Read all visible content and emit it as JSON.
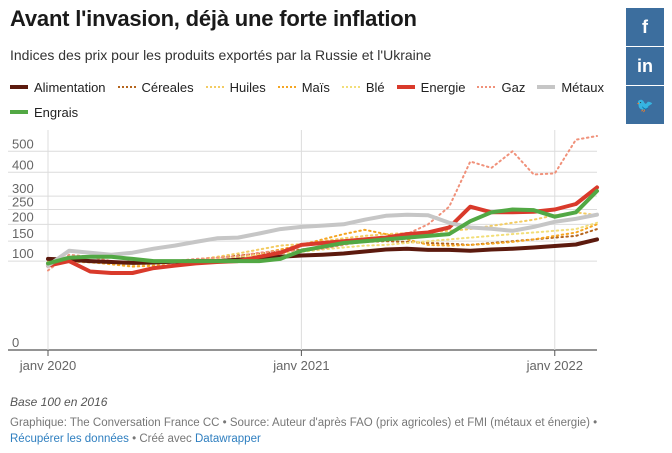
{
  "title": "Avant l'invasion, déjà une forte inflation",
  "subtitle": "Indices des prix pour les produits exportés par la Russie et l'Ukraine",
  "social": [
    {
      "name": "facebook-icon",
      "glyph": "f"
    },
    {
      "name": "linkedin-icon",
      "glyph": "in"
    },
    {
      "name": "twitter-icon",
      "glyph": "🐦"
    }
  ],
  "colors": {
    "Alimentation": "#5c1a0e",
    "Céreales": "#b5651d",
    "Huiles": "#f3cc63",
    "Maïs": "#f5a623",
    "Blé": "#f2de79",
    "Energie": "#d93a2b",
    "Gaz": "#f0917a",
    "Métaux": "#c6c6c6",
    "Engrais": "#52a844"
  },
  "chart_data": {
    "type": "line",
    "scale": "sqrt",
    "ylim": [
      0,
      580
    ],
    "yticks": [
      0,
      100,
      150,
      200,
      250,
      300,
      400,
      500
    ],
    "xticks": [
      {
        "label": "janv 2020",
        "t": 0
      },
      {
        "label": "janv 2021",
        "t": 12
      },
      {
        "label": "janv 2022",
        "t": 24
      }
    ],
    "xlim": [
      0,
      26
    ],
    "grid": true,
    "legend_position": "top",
    "series": [
      {
        "name": "Alimentation",
        "style": "solid",
        "width": 4,
        "values": [
          105,
          103,
          100,
          98,
          96,
          97,
          99,
          100,
          100,
          103,
          106,
          110,
          113,
          115,
          118,
          123,
          128,
          130,
          127,
          127,
          125,
          128,
          130,
          133,
          137,
          141,
          155
        ]
      },
      {
        "name": "Céreales",
        "style": "dotted",
        "width": 2,
        "values": [
          104,
          103,
          100,
          98,
          97,
          98,
          99,
          103,
          108,
          113,
          118,
          124,
          128,
          135,
          142,
          148,
          150,
          148,
          145,
          143,
          140,
          145,
          150,
          155,
          160,
          165,
          185
        ]
      },
      {
        "name": "Huiles",
        "style": "dotted",
        "width": 2,
        "values": [
          100,
          99,
          97,
          94,
          92,
          94,
          97,
          103,
          110,
          118,
          128,
          138,
          142,
          150,
          158,
          165,
          170,
          173,
          176,
          180,
          185,
          195,
          205,
          215,
          230,
          240,
          230
        ]
      },
      {
        "name": "Maïs",
        "style": "dotted",
        "width": 2,
        "values": [
          101,
          100,
          98,
          93,
          88,
          90,
          92,
          96,
          100,
          108,
          118,
          128,
          140,
          155,
          170,
          183,
          170,
          155,
          140,
          138,
          140,
          143,
          148,
          155,
          165,
          175,
          200
        ]
      },
      {
        "name": "Blé",
        "style": "dotted",
        "width": 2,
        "values": [
          102,
          101,
          100,
          99,
          98,
          99,
          100,
          103,
          107,
          110,
          115,
          118,
          122,
          128,
          133,
          138,
          140,
          145,
          150,
          155,
          160,
          165,
          170,
          175,
          180,
          185,
          205
        ]
      },
      {
        "name": "Energie",
        "style": "solid",
        "width": 4,
        "values": [
          90,
          100,
          78,
          75,
          75,
          85,
          90,
          95,
          98,
          100,
          110,
          120,
          140,
          145,
          150,
          155,
          160,
          170,
          175,
          190,
          260,
          240,
          240,
          242,
          250,
          270,
          335
        ]
      },
      {
        "name": "Gaz",
        "style": "dotted",
        "width": 2,
        "values": [
          80,
          115,
          110,
          100,
          95,
          95,
          100,
          105,
          108,
          112,
          120,
          125,
          125,
          130,
          140,
          150,
          160,
          170,
          200,
          260,
          450,
          420,
          500,
          390,
          395,
          560,
          580
        ]
      },
      {
        "name": "Métaux",
        "style": "solid",
        "width": 4,
        "values": [
          90,
          125,
          120,
          115,
          120,
          130,
          138,
          148,
          158,
          160,
          172,
          185,
          192,
          196,
          200,
          215,
          228,
          232,
          230,
          205,
          190,
          186,
          180,
          192,
          208,
          218,
          232
        ]
      },
      {
        "name": "Engrais",
        "style": "solid",
        "width": 4,
        "values": [
          95,
          108,
          110,
          110,
          105,
          100,
          100,
          100,
          100,
          100,
          100,
          105,
          125,
          135,
          145,
          150,
          155,
          160,
          165,
          170,
          210,
          240,
          250,
          248,
          225,
          240,
          320
        ]
      }
    ]
  },
  "notes": {
    "base": "Base 100 en 2016",
    "source_prefix": "Graphique: The Conversation France CC • Source: Auteur d'après FAO (prix agricoles) et FMI (métaux et énergie) •",
    "download_link": "Récupérer les données",
    "made_with": "• Créé avec",
    "datawrapper_link": "Datawrapper"
  }
}
